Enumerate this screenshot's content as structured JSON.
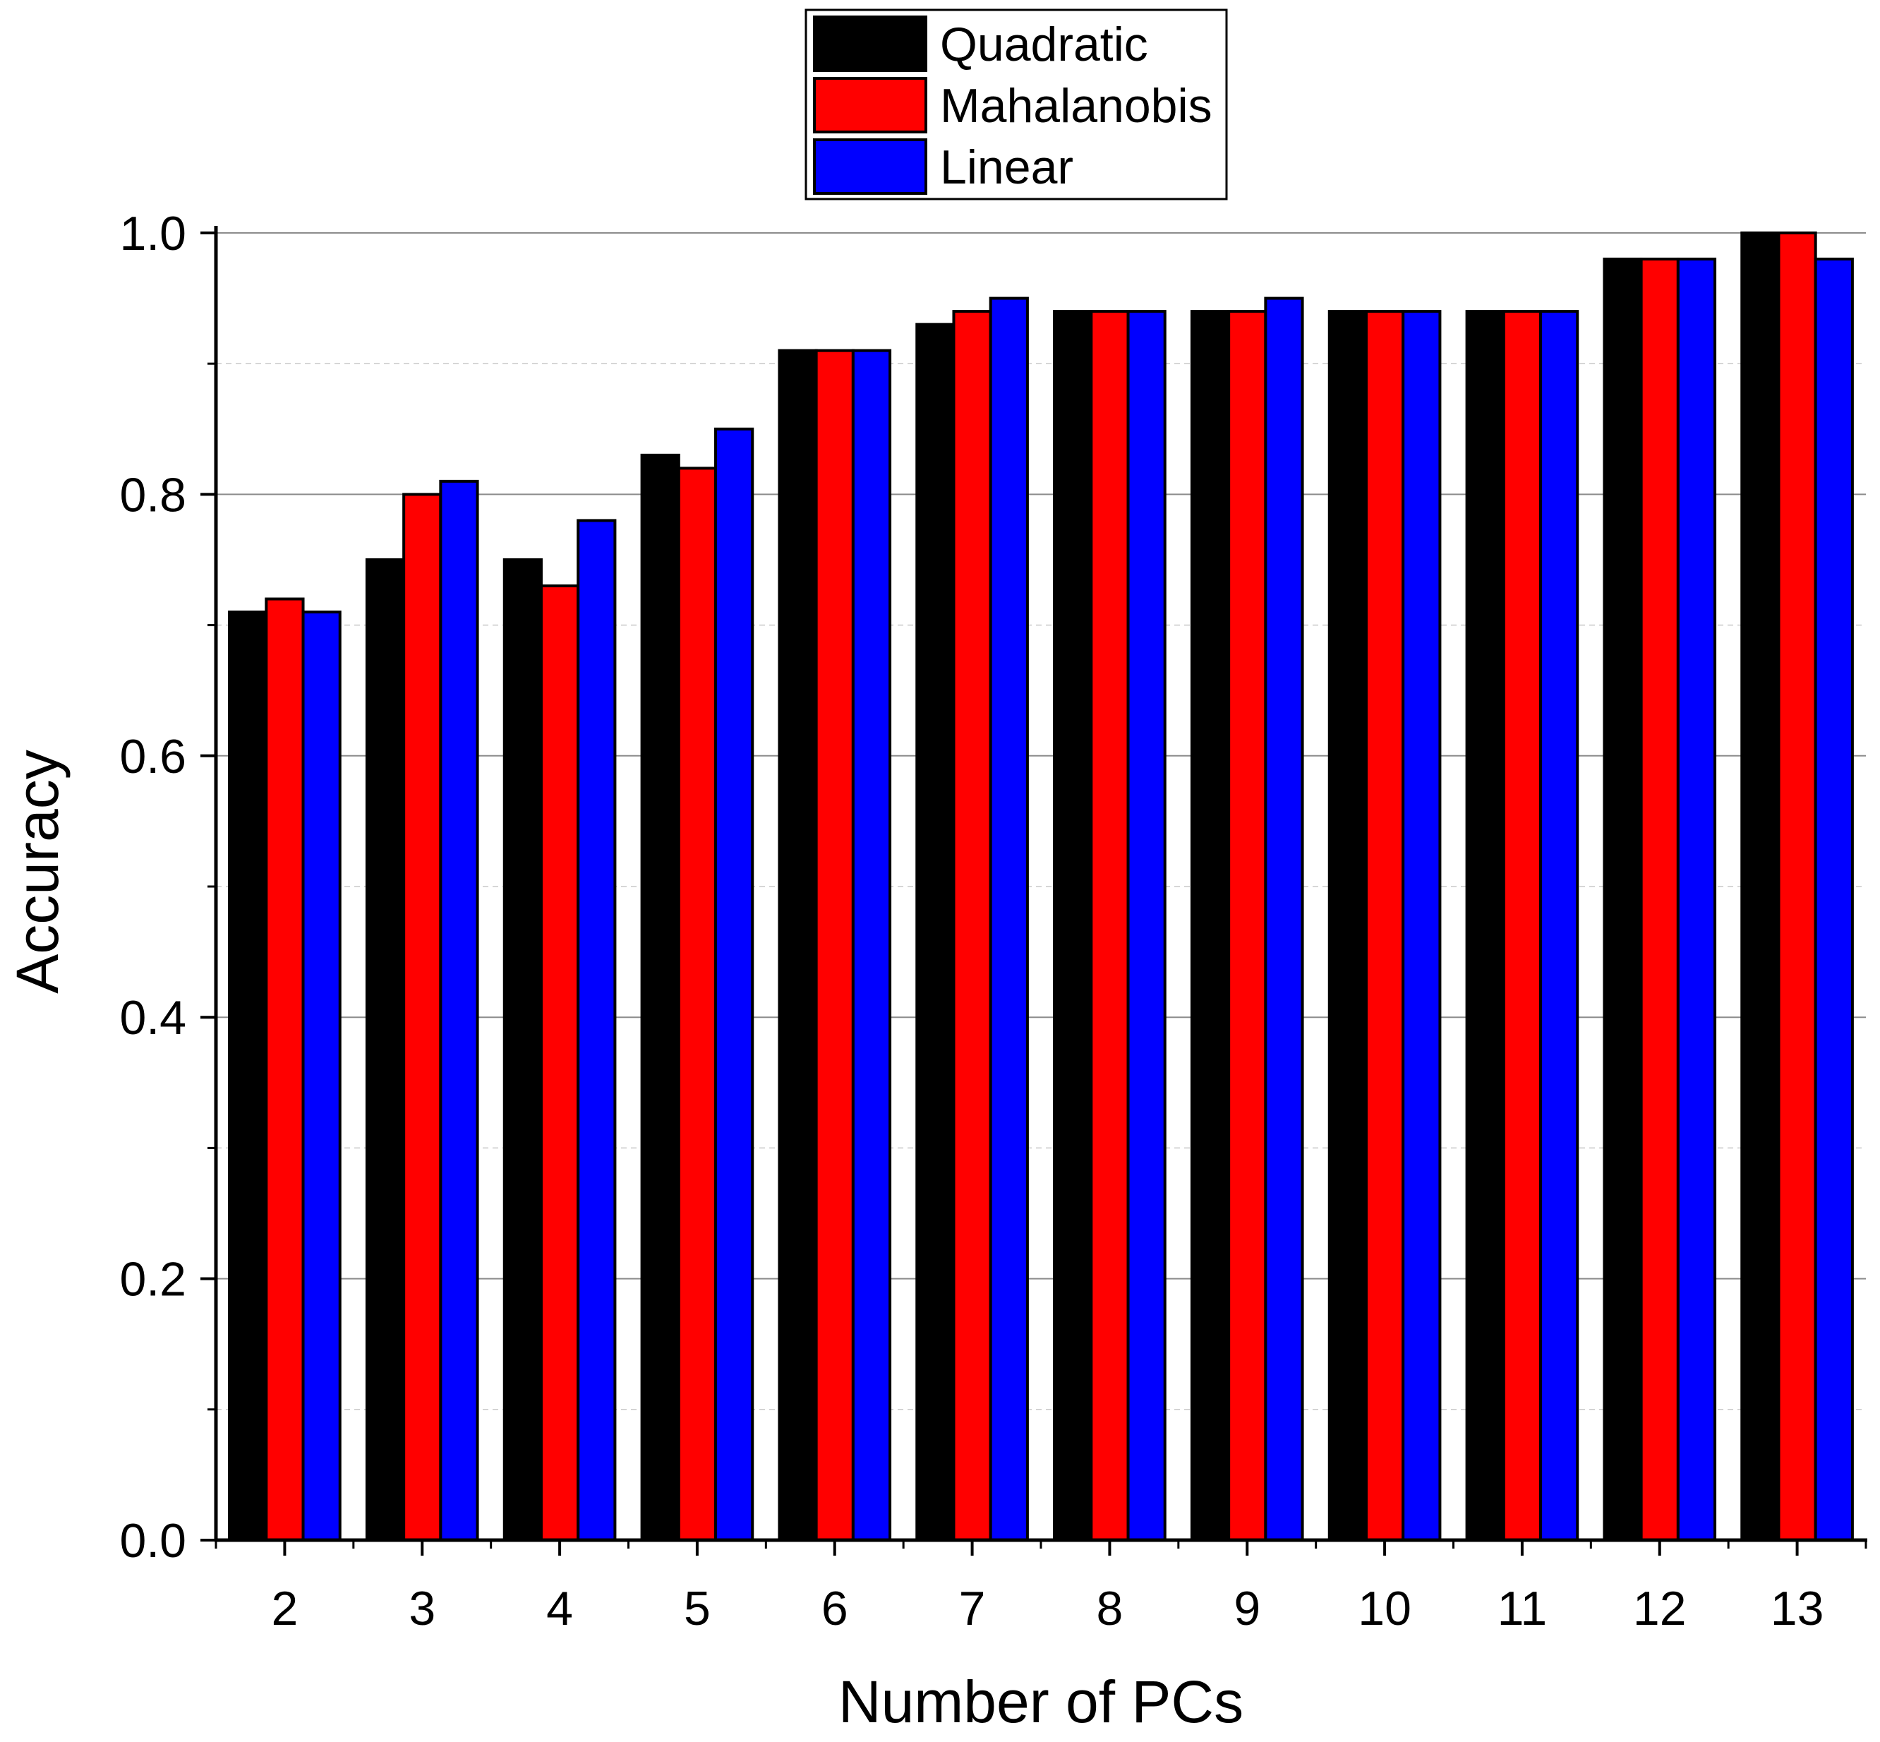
{
  "chart_data": {
    "type": "bar",
    "xlabel": "Number of PCs",
    "ylabel": "Accuracy",
    "categories": [
      "2",
      "3",
      "4",
      "5",
      "6",
      "7",
      "8",
      "9",
      "10",
      "11",
      "12",
      "13"
    ],
    "series": [
      {
        "name": "Quadratic",
        "color": "#000000",
        "values": [
          0.71,
          0.75,
          0.75,
          0.83,
          0.91,
          0.93,
          0.94,
          0.94,
          0.94,
          0.94,
          0.98,
          1.0
        ]
      },
      {
        "name": "Mahalanobis",
        "color": "#ff0000",
        "values": [
          0.72,
          0.8,
          0.73,
          0.82,
          0.91,
          0.94,
          0.94,
          0.94,
          0.94,
          0.94,
          0.98,
          1.0
        ]
      },
      {
        "name": "Linear",
        "color": "#0000ff",
        "values": [
          0.71,
          0.81,
          0.78,
          0.85,
          0.91,
          0.95,
          0.94,
          0.95,
          0.94,
          0.94,
          0.98,
          0.98
        ]
      }
    ],
    "ylim": [
      0,
      1.0
    ],
    "yticks": [
      "0.0",
      "0.2",
      "0.4",
      "0.6",
      "0.8",
      "1.0"
    ],
    "grid": true,
    "legend_position": "top"
  }
}
